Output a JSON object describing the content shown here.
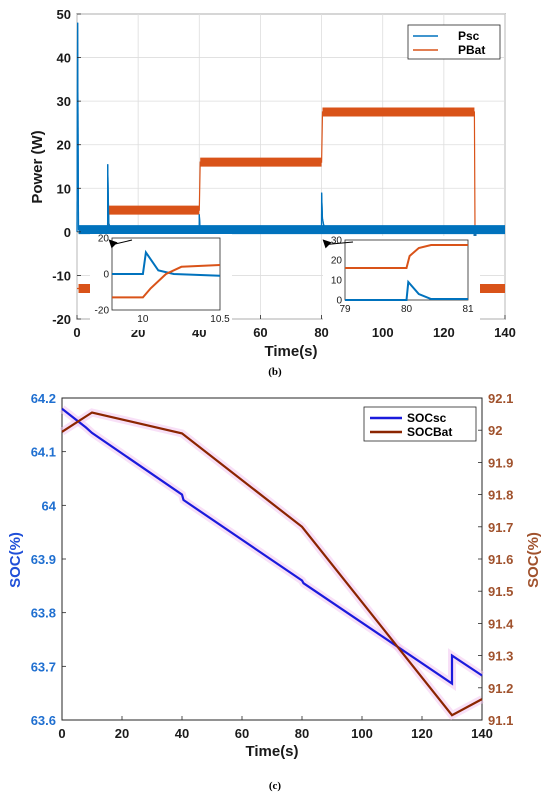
{
  "chart_data": [
    {
      "type": "line",
      "panel_label": "(b)",
      "xlabel": "Time(s)",
      "ylabel": "Power (W)",
      "xlim": [
        0,
        140
      ],
      "ylim": [
        -20,
        50
      ],
      "xticks": [
        0,
        20,
        40,
        60,
        80,
        100,
        120,
        140
      ],
      "yticks": [
        -20,
        -10,
        0,
        10,
        20,
        30,
        40,
        50
      ],
      "legend_position": "top-right",
      "grid": true,
      "series": [
        {
          "name": "Psc",
          "color": "#0072BD",
          "x": [
            0,
            0.2,
            0.5,
            10,
            10.05,
            10.4,
            11,
            39.99,
            40,
            40.3,
            79.99,
            80,
            80.3,
            81,
            129.9,
            130,
            130.5,
            140
          ],
          "y": [
            0,
            48,
            0.5,
            0.5,
            15.5,
            2,
            0.5,
            0.5,
            4,
            0.5,
            0.5,
            9,
            3,
            0.5,
            0.5,
            -20,
            0.5,
            0.5
          ]
        },
        {
          "name": "PBat",
          "color": "#D95319",
          "x": [
            0,
            0.5,
            10,
            10.4,
            40,
            40.3,
            80,
            80.3,
            130,
            130.3,
            140
          ],
          "y": [
            -13,
            -13,
            -13,
            5,
            5,
            16,
            16,
            27.5,
            27.5,
            -13,
            -13
          ]
        }
      ],
      "insets": [
        {
          "xlim": [
            9.8,
            10.5
          ],
          "ylim": [
            -20,
            20
          ],
          "xticks": [
            10,
            10.5
          ],
          "yticks": [
            -20,
            0,
            20
          ],
          "points_to_x": 10,
          "series": [
            {
              "name": "Psc",
              "x": [
                9.8,
                10,
                10.02,
                10.1,
                10.2,
                10.5
              ],
              "y": [
                0,
                0,
                12,
                2,
                0,
                -1
              ]
            },
            {
              "name": "PBat",
              "x": [
                9.8,
                10,
                10.05,
                10.15,
                10.25,
                10.5
              ],
              "y": [
                -13,
                -13,
                -8,
                0,
                4,
                5
              ]
            }
          ]
        },
        {
          "xlim": [
            79,
            81
          ],
          "ylim": [
            0,
            30
          ],
          "xticks": [
            79,
            80,
            81
          ],
          "yticks": [
            0,
            10,
            20,
            30
          ],
          "points_to_x": 80,
          "series": [
            {
              "name": "Psc",
              "x": [
                79,
                80,
                80.03,
                80.2,
                80.4,
                81
              ],
              "y": [
                0,
                0,
                9,
                3,
                0.5,
                0.5
              ]
            },
            {
              "name": "PBat",
              "x": [
                79,
                80,
                80.05,
                80.2,
                80.4,
                81
              ],
              "y": [
                16,
                16,
                22,
                26,
                27.5,
                27.5
              ]
            }
          ]
        }
      ]
    },
    {
      "type": "line",
      "panel_label": "(c)",
      "xlabel": "Time(s)",
      "ylabel_left": "SOC(%)",
      "ylabel_right": "SOC(%)",
      "xlim": [
        0,
        140
      ],
      "ylim_left": [
        63.6,
        64.2
      ],
      "ylim_right": [
        91.1,
        92.1
      ],
      "xticks": [
        0,
        20,
        40,
        60,
        80,
        100,
        120,
        140
      ],
      "yticks_left": [
        "63.6",
        "63.7",
        "63.8",
        "63.9",
        "64",
        "64.1",
        "64.2"
      ],
      "yticks_right": [
        "91.1",
        "91.2",
        "91.3",
        "91.4",
        "91.5",
        "91.6",
        "91.7",
        "91.8",
        "91.9",
        "92",
        "92.1"
      ],
      "legend_position": "top-right",
      "grid": false,
      "series": [
        {
          "name": "SOCsc",
          "axis": "left",
          "color": "#1a1adc",
          "x": [
            0,
            8,
            10,
            40,
            40.5,
            80,
            80.5,
            130,
            130,
            140
          ],
          "y": [
            64.18,
            64.145,
            64.135,
            64.02,
            64.01,
            63.86,
            63.855,
            63.668,
            63.72,
            63.683
          ]
        },
        {
          "name": "SOCBat",
          "axis": "right",
          "color": "#8B2500",
          "x": [
            0,
            10,
            40,
            80,
            130,
            140
          ],
          "y": [
            91.995,
            92.055,
            91.99,
            91.7,
            91.115,
            91.165
          ]
        }
      ]
    }
  ]
}
